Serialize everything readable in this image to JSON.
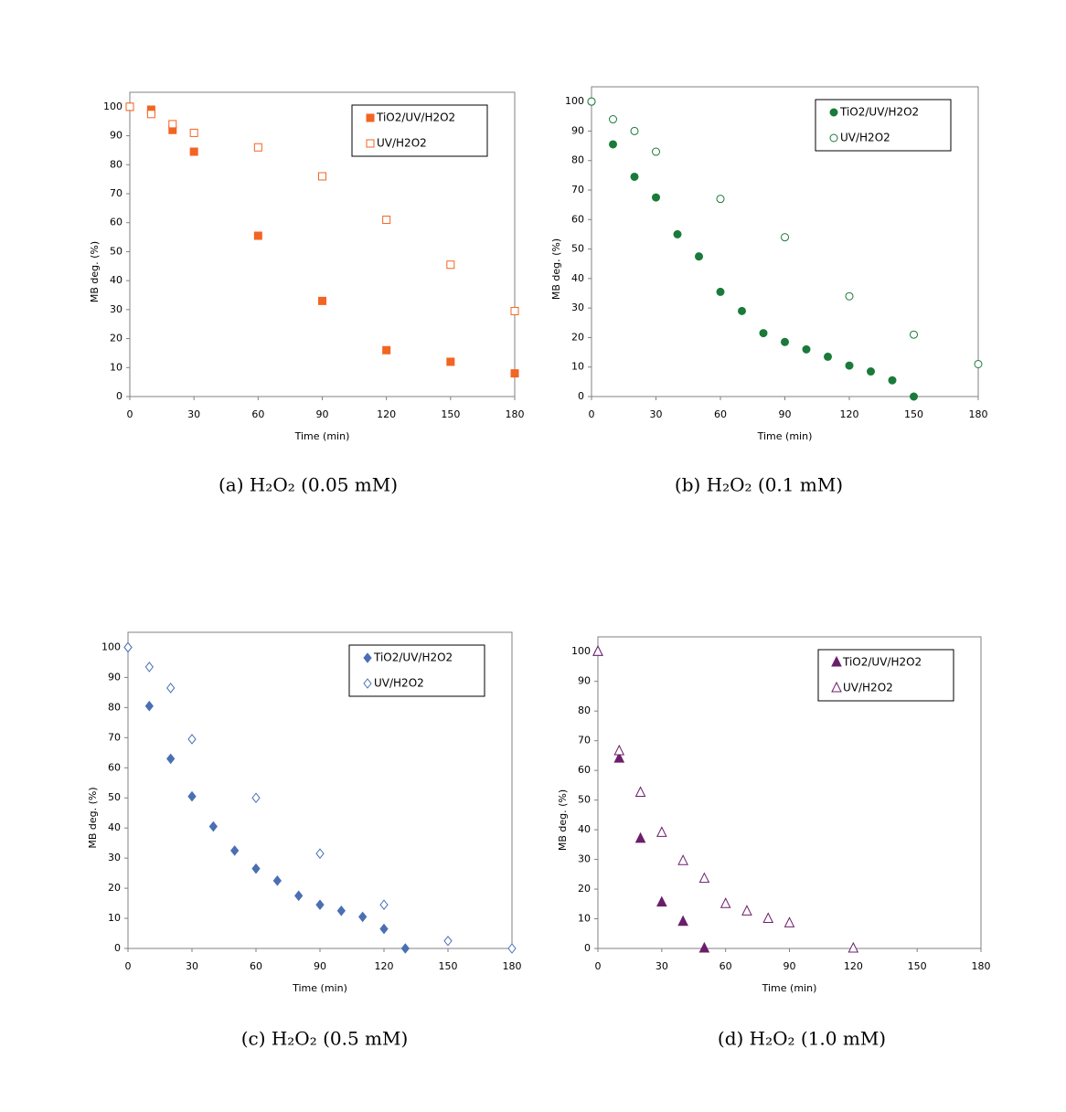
{
  "chart_data": [
    {
      "type": "scatter",
      "marker": "square",
      "legend": "upper right",
      "xlabel": "Time (min)",
      "ylabel": "MB deg. (%)",
      "caption": "(a) H₂O₂ (0.05 mM)",
      "xlim": [
        0,
        180
      ],
      "xticks": [
        0,
        30,
        60,
        90,
        120,
        150,
        180
      ],
      "ylim": [
        0,
        105
      ],
      "yticks": [
        0,
        10,
        20,
        30,
        40,
        50,
        60,
        70,
        80,
        90,
        100
      ],
      "series": [
        {
          "name": "TiO2/UV/H2O2",
          "color": "#f26522",
          "filled": true,
          "x": [
            0,
            10,
            20,
            30,
            60,
            90,
            120,
            150,
            180
          ],
          "values": [
            100,
            99,
            92,
            84.5,
            55.5,
            33,
            16,
            12,
            8
          ]
        },
        {
          "name": "UV/H2O2",
          "color": "#f26522",
          "filled": false,
          "x": [
            0,
            10,
            20,
            30,
            60,
            90,
            120,
            150,
            180
          ],
          "values": [
            100,
            97.5,
            94,
            91,
            86,
            76,
            61,
            45.5,
            29.5
          ]
        }
      ]
    },
    {
      "type": "scatter",
      "marker": "circle",
      "legend": "upper right",
      "xlabel": "Time (min)",
      "ylabel": "MB deg. (%)",
      "caption": "(b) H₂O₂ (0.1 mM)",
      "xlim": [
        0,
        180
      ],
      "xticks": [
        0,
        30,
        60,
        90,
        120,
        150,
        180
      ],
      "ylim": [
        0,
        105
      ],
      "yticks": [
        0,
        10,
        20,
        30,
        40,
        50,
        60,
        70,
        80,
        90,
        100
      ],
      "series": [
        {
          "name": "TiO2/UV/H2O2",
          "color": "#1a7a3a",
          "filled": true,
          "x": [
            0,
            10,
            20,
            30,
            40,
            50,
            60,
            70,
            80,
            90,
            100,
            110,
            120,
            130,
            140,
            150
          ],
          "values": [
            100,
            85.5,
            74.5,
            67.5,
            55,
            47.5,
            35.5,
            29,
            21.5,
            18.5,
            16,
            13.5,
            10.5,
            8.5,
            5.5,
            0
          ]
        },
        {
          "name": "UV/H2O2",
          "color": "#1a7a3a",
          "filled": false,
          "x": [
            0,
            10,
            20,
            30,
            60,
            90,
            120,
            150,
            180
          ],
          "values": [
            100,
            94,
            90,
            83,
            67,
            54,
            34,
            21,
            11
          ]
        }
      ]
    },
    {
      "type": "scatter",
      "marker": "diamond",
      "legend": "upper right",
      "xlabel": "Time (min)",
      "ylabel": "MB deg. (%)",
      "caption": "(c) H₂O₂ (0.5 mM)",
      "xlim": [
        0,
        180
      ],
      "xticks": [
        0,
        30,
        60,
        90,
        120,
        150,
        180
      ],
      "ylim": [
        0,
        105
      ],
      "yticks": [
        0,
        10,
        20,
        30,
        40,
        50,
        60,
        70,
        80,
        90,
        100
      ],
      "series": [
        {
          "name": "TiO2/UV/H2O2",
          "color": "#4a6fb5",
          "filled": true,
          "x": [
            0,
            10,
            20,
            30,
            40,
            50,
            60,
            70,
            80,
            90,
            100,
            110,
            120,
            130
          ],
          "values": [
            100,
            80.5,
            63,
            50.5,
            40.5,
            32.5,
            26.5,
            22.5,
            17.5,
            14.5,
            12.5,
            10.5,
            6.5,
            0
          ]
        },
        {
          "name": "UV/H2O2",
          "color": "#4a6fb5",
          "filled": false,
          "x": [
            0,
            10,
            20,
            30,
            60,
            90,
            120,
            150,
            180
          ],
          "values": [
            100,
            93.5,
            86.5,
            69.5,
            50,
            31.5,
            14.5,
            2.5,
            0
          ]
        }
      ]
    },
    {
      "type": "scatter",
      "marker": "triangle",
      "legend": "upper right",
      "xlabel": "Time (min)",
      "ylabel": "MB deg. (%)",
      "caption": "(d) H₂O₂ (1.0 mM)",
      "xlim": [
        0,
        180
      ],
      "xticks": [
        0,
        30,
        60,
        90,
        120,
        150,
        180
      ],
      "ylim": [
        0,
        105
      ],
      "yticks": [
        0,
        10,
        20,
        30,
        40,
        50,
        60,
        70,
        80,
        90,
        100
      ],
      "series": [
        {
          "name": "TiO2/UV/H2O2",
          "color": "#6b1f6b",
          "filled": true,
          "x": [
            0,
            10,
            20,
            30,
            40,
            50
          ],
          "values": [
            100,
            64,
            37,
            15.5,
            9,
            0
          ]
        },
        {
          "name": "UV/H2O2",
          "color": "#6b1f6b",
          "filled": false,
          "x": [
            0,
            10,
            20,
            30,
            40,
            50,
            60,
            70,
            80,
            90,
            120
          ],
          "values": [
            100,
            66.5,
            52.5,
            39,
            29.5,
            23.5,
            15,
            12.5,
            10,
            8.5,
            0
          ]
        }
      ]
    }
  ]
}
